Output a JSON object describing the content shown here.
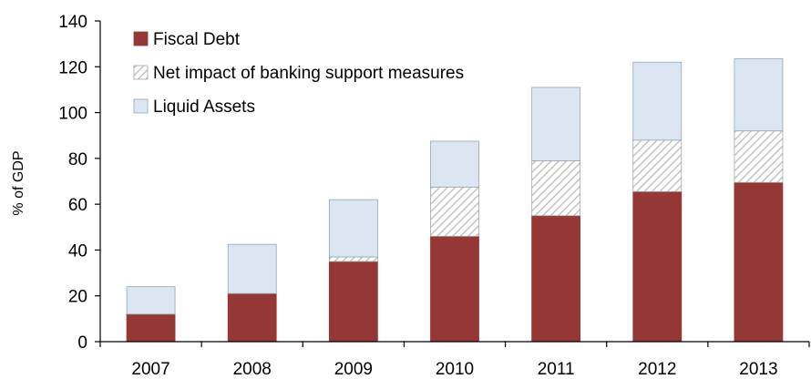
{
  "chart_data": {
    "type": "bar",
    "stacked": true,
    "categories": [
      "2007",
      "2008",
      "2009",
      "2010",
      "2011",
      "2012",
      "2013"
    ],
    "series": [
      {
        "name": "Fiscal Debt",
        "values": [
          12,
          21,
          35,
          46,
          55,
          65.5,
          69.5
        ],
        "color": "#953735",
        "pattern": "solid"
      },
      {
        "name": "Net impact of banking support measures",
        "values": [
          0,
          0,
          2,
          21.5,
          24,
          22.5,
          22.5
        ],
        "color": "#d9d9d9",
        "pattern": "diagonal-hatch"
      },
      {
        "name": "Liquid Assets",
        "values": [
          12,
          21.5,
          25,
          20,
          32,
          34,
          31.5
        ],
        "color": "#dce6f2",
        "pattern": "solid"
      }
    ],
    "title": "",
    "xlabel": "",
    "ylabel": "% of GDP",
    "ylim": [
      0,
      140
    ],
    "yticks": [
      0,
      20,
      40,
      60,
      80,
      100,
      120,
      140
    ],
    "grid": false,
    "legend_position": "top-left"
  }
}
